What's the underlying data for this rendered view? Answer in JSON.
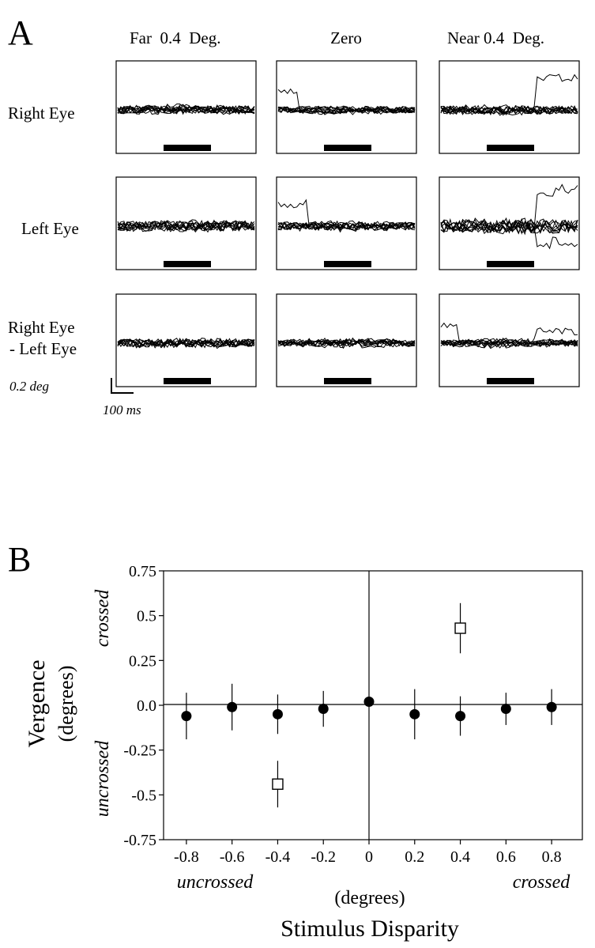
{
  "panel_a": {
    "letter": "A",
    "column_labels": [
      "Far  0.4  Deg.",
      "Zero",
      "Near 0.4  Deg."
    ],
    "row_labels": [
      [
        "Right Eye"
      ],
      [
        "Left Eye"
      ],
      [
        "Right Eye",
        "- Left Eye"
      ]
    ],
    "scale_bar": {
      "vertical_label": "0.2 deg",
      "horizontal_label": "100 ms"
    }
  },
  "panel_b": {
    "letter": "B"
  },
  "chart_data": [
    {
      "type": "line",
      "description_of_traces": "superimposed eye-position traces for each condition",
      "columns": [
        "Far  0.4  Deg.",
        "Zero",
        "Near 0.4  Deg."
      ],
      "rows": [
        "Right Eye",
        "Left Eye",
        "Right Eye - Left Eye"
      ],
      "stimulus_bar": true,
      "scale": {
        "vertical": "0.2 deg",
        "horizontal": "100 ms"
      }
    },
    {
      "type": "scatter",
      "title": "",
      "xlabel": "Stimulus Disparity",
      "xlabel_units": "(degrees)",
      "ylabel": "Vergence",
      "ylabel_units": "(degrees)",
      "x_ticks": [
        "-0.8",
        "-0.6",
        "-0.4",
        "-0.2",
        "0",
        "0.2",
        "0.4",
        "0.6",
        "0.8"
      ],
      "y_ticks": [
        "0.75",
        "0.5",
        "0.25",
        "0.0",
        "-0.25",
        "-0.5",
        "-0.75"
      ],
      "xlim": [
        -0.9,
        0.9
      ],
      "ylim": [
        -0.75,
        0.75
      ],
      "y_annotations": {
        "positive": "crossed",
        "negative": "uncrossed"
      },
      "x_annotations": {
        "negative": "uncrossed",
        "positive": "crossed"
      },
      "series": [
        {
          "marker": "filled-circle",
          "points": [
            {
              "x": -0.8,
              "y": -0.06,
              "err": 0.13
            },
            {
              "x": -0.6,
              "y": -0.01,
              "err": 0.13
            },
            {
              "x": -0.4,
              "y": -0.05,
              "err": 0.11
            },
            {
              "x": -0.2,
              "y": -0.02,
              "err": 0.1
            },
            {
              "x": 0.0,
              "y": 0.02,
              "err": 0.0
            },
            {
              "x": 0.2,
              "y": -0.05,
              "err": 0.14
            },
            {
              "x": 0.4,
              "y": -0.06,
              "err": 0.11
            },
            {
              "x": 0.6,
              "y": -0.02,
              "err": 0.09
            },
            {
              "x": 0.8,
              "y": -0.01,
              "err": 0.1
            }
          ]
        },
        {
          "marker": "open-square",
          "points": [
            {
              "x": -0.4,
              "y": -0.44,
              "err": 0.13
            },
            {
              "x": 0.4,
              "y": 0.43,
              "err": 0.14
            }
          ]
        }
      ]
    }
  ]
}
